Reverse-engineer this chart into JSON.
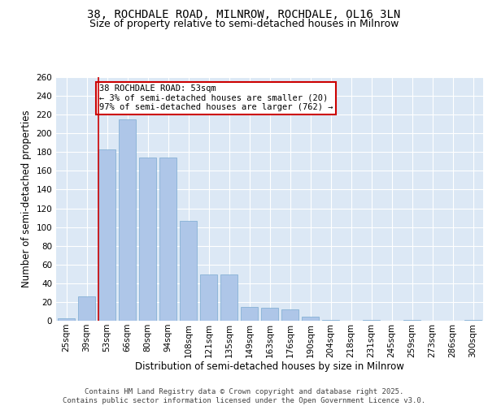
{
  "title1": "38, ROCHDALE ROAD, MILNROW, ROCHDALE, OL16 3LN",
  "title2": "Size of property relative to semi-detached houses in Milnrow",
  "xlabel": "Distribution of semi-detached houses by size in Milnrow",
  "ylabel": "Number of semi-detached properties",
  "categories": [
    "25sqm",
    "39sqm",
    "53sqm",
    "66sqm",
    "80sqm",
    "94sqm",
    "108sqm",
    "121sqm",
    "135sqm",
    "149sqm",
    "163sqm",
    "176sqm",
    "190sqm",
    "204sqm",
    "218sqm",
    "231sqm",
    "245sqm",
    "259sqm",
    "273sqm",
    "286sqm",
    "300sqm"
  ],
  "values": [
    3,
    26,
    183,
    215,
    174,
    174,
    107,
    49,
    49,
    15,
    14,
    12,
    4,
    1,
    0,
    1,
    0,
    1,
    0,
    0,
    1
  ],
  "bar_color": "#aec6e8",
  "bar_edgecolor": "#7aaad0",
  "highlight_index": 2,
  "highlight_color": "#cc0000",
  "annotation_text": "38 ROCHDALE ROAD: 53sqm\n← 3% of semi-detached houses are smaller (20)\n97% of semi-detached houses are larger (762) →",
  "annotation_box_color": "#ffffff",
  "annotation_box_edgecolor": "#cc0000",
  "ylim": [
    0,
    260
  ],
  "yticks": [
    0,
    20,
    40,
    60,
    80,
    100,
    120,
    140,
    160,
    180,
    200,
    220,
    240,
    260
  ],
  "footer": "Contains HM Land Registry data © Crown copyright and database right 2025.\nContains public sector information licensed under the Open Government Licence v3.0.",
  "bg_color": "#dce8f5",
  "grid_color": "#ffffff",
  "title_fontsize": 10,
  "subtitle_fontsize": 9,
  "axis_label_fontsize": 8.5,
  "tick_fontsize": 7.5,
  "footer_fontsize": 6.5
}
